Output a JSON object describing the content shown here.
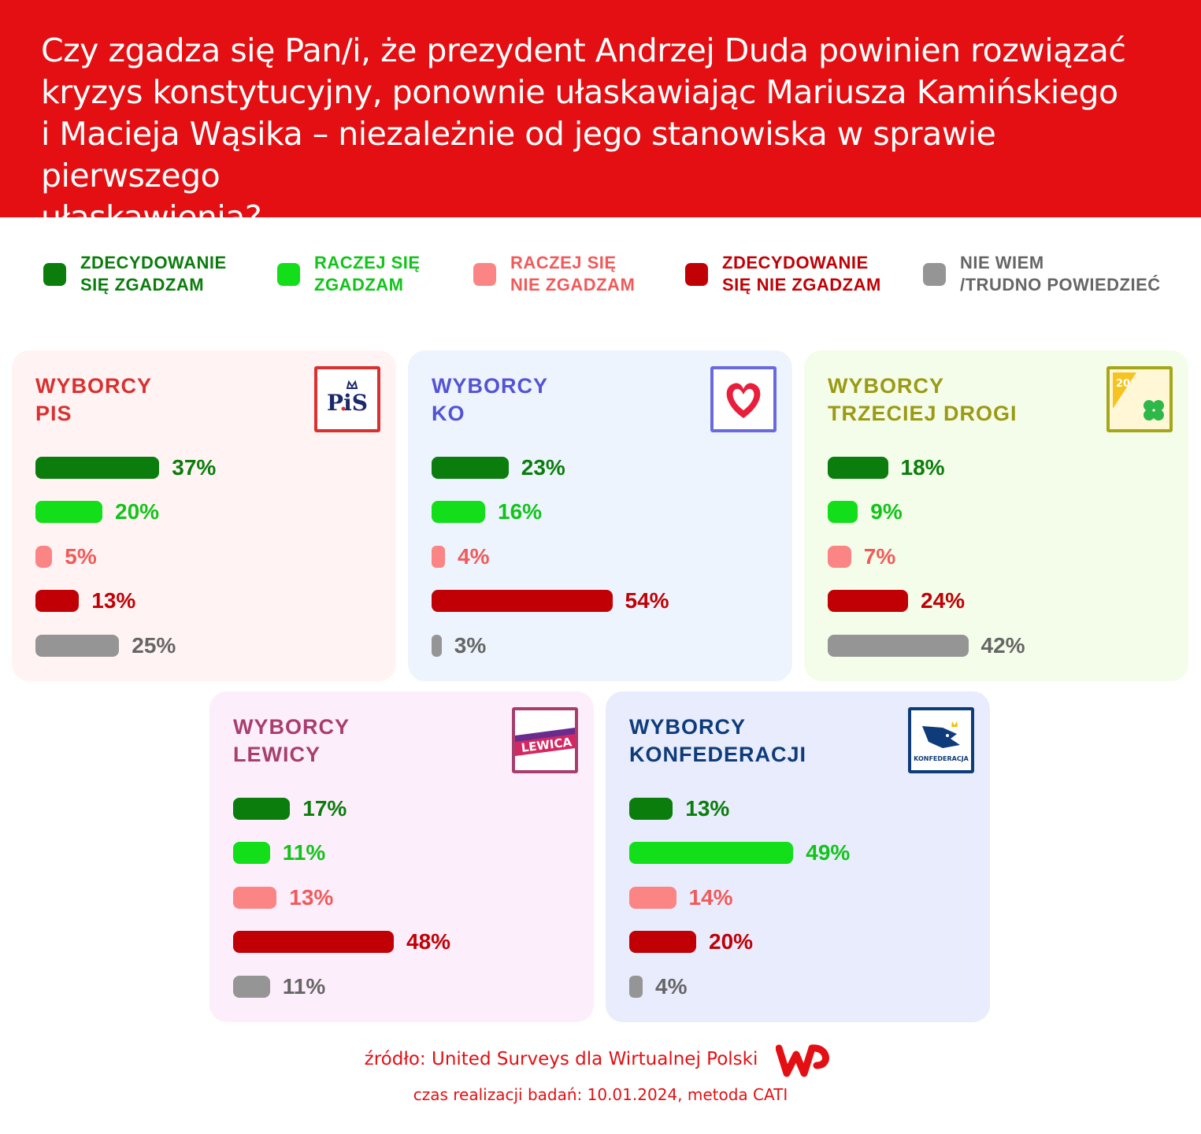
{
  "title": "Czy zgadza się Pan/i, że prezydent Andrzej Duda powinien rozwiązać kryzys konstytucyjny, ponownie ułaskawiając Mariusza Kamińskiego i Macieja Wąsika – niezależnie od jego stanowiska w sprawie pierwszego ułaskawienia?",
  "title_lines": [
    "Czy zgadza się Pan/i, że prezydent Andrzej Duda powinien rozwiązać",
    "kryzys konstytucyjny, ponownie ułaskawiając Mariusza Kamińskiego",
    "i Macieja Wąsika – niezależnie od jego stanowiska w sprawie pierwszego",
    "ułaskawienia?"
  ],
  "colors": {
    "header_bg": "#e40f12",
    "strong_agree": "#0a7d0c",
    "agree": "#12de1a",
    "disagree": "#fb8585",
    "strong_disagree": "#c10005",
    "dont_know": "#959595",
    "strong_agree_text": "#0a7d0c",
    "agree_text": "#12c41a",
    "disagree_text": "#f25a5a",
    "strong_disagree_text": "#c10005",
    "dont_know_text": "#666666"
  },
  "legend": [
    {
      "key": "strong_agree",
      "line1": "ZDECYDOWANIE",
      "line2": "SIĘ ZGADZAM"
    },
    {
      "key": "agree",
      "line1": "RACZEJ SIĘ",
      "line2": "ZGADZAM"
    },
    {
      "key": "disagree",
      "line1": "RACZEJ SIĘ",
      "line2": "NIE ZGADZAM"
    },
    {
      "key": "strong_disagree",
      "line1": "ZDECYDOWANIE",
      "line2": "SIĘ NIE ZGADZAM"
    },
    {
      "key": "dont_know",
      "line1": "NIE WIEM",
      "line2": "/TRUDNO POWIEDZIEĆ"
    }
  ],
  "chart_data": [
    {
      "type": "bar",
      "title": "WYBORCY PIS",
      "title_line1": "WYBORCY",
      "title_line2": "PIS",
      "title_color": "#d8312f",
      "bg": "#fff4f3",
      "logo_color": "#d8312f",
      "logo_name": "pis-logo-icon",
      "logo_text": "PiS",
      "categories": [
        "ZDECYDOWANIE SIĘ ZGADZAM",
        "RACZEJ SIĘ ZGADZAM",
        "RACZEJ SIĘ NIE ZGADZAM",
        "ZDECYDOWANIE SIĘ NIE ZGADZAM",
        "NIE WIEM /TRUDNO POWIEDZIEĆ"
      ],
      "values": [
        37,
        20,
        5,
        13,
        25
      ],
      "labels": [
        "37%",
        "20%",
        "5%",
        "13%",
        "25%"
      ],
      "ylim": [
        0,
        100
      ]
    },
    {
      "type": "bar",
      "title": "WYBORCY KO",
      "title_line1": "WYBORCY",
      "title_line2": "KO",
      "title_color": "#5353d6",
      "bg": "#edf4fd",
      "logo_color": "#6a6ae0",
      "logo_name": "ko-heart-logo-icon",
      "logo_text": "",
      "categories": [
        "ZDECYDOWANIE SIĘ ZGADZAM",
        "RACZEJ SIĘ ZGADZAM",
        "RACZEJ SIĘ NIE ZGADZAM",
        "ZDECYDOWANIE SIĘ NIE ZGADZAM",
        "NIE WIEM /TRUDNO POWIEDZIEĆ"
      ],
      "values": [
        23,
        16,
        4,
        54,
        3
      ],
      "labels": [
        "23%",
        "16%",
        "4%",
        "54%",
        "3%"
      ],
      "ylim": [
        0,
        100
      ]
    },
    {
      "type": "bar",
      "title": "WYBORCY TRZECIEJ DROGI",
      "title_line1": "WYBORCY",
      "title_line2": "TRZECIEJ DROGI",
      "title_color": "#9a9a14",
      "bg": "#f4fde9",
      "logo_color": "#a6a619",
      "logo_name": "trzecia-droga-logo-icon",
      "logo_text": "",
      "categories": [
        "ZDECYDOWANIE SIĘ ZGADZAM",
        "RACZEJ SIĘ ZGADZAM",
        "RACZEJ SIĘ NIE ZGADZAM",
        "ZDECYDOWANIE SIĘ NIE ZGADZAM",
        "NIE WIEM /TRUDNO POWIEDZIEĆ"
      ],
      "values": [
        18,
        9,
        7,
        24,
        42
      ],
      "labels": [
        "18%",
        "9%",
        "7%",
        "24%",
        "42%"
      ],
      "ylim": [
        0,
        100
      ]
    },
    {
      "type": "bar",
      "title": "WYBORCY LEWICY",
      "title_line1": "WYBORCY",
      "title_line2": "LEWICY",
      "title_color": "#a83e6e",
      "bg": "#fdeefb",
      "logo_color": "#a83e6e",
      "logo_name": "lewica-logo-icon",
      "logo_text": "LEWICA",
      "categories": [
        "ZDECYDOWANIE SIĘ ZGADZAM",
        "RACZEJ SIĘ ZGADZAM",
        "RACZEJ SIĘ NIE ZGADZAM",
        "ZDECYDOWANIE SIĘ NIE ZGADZAM",
        "NIE WIEM /TRUDNO POWIEDZIEĆ"
      ],
      "values": [
        17,
        11,
        13,
        48,
        11
      ],
      "labels": [
        "17%",
        "11%",
        "13%",
        "48%",
        "11%"
      ],
      "ylim": [
        0,
        100
      ]
    },
    {
      "type": "bar",
      "title": "WYBORCY KONFEDERACJI",
      "title_line1": "WYBORCY",
      "title_line2": "KONFEDERACJI",
      "title_color": "#0e3b7a",
      "bg": "#e8ecfc",
      "logo_color": "#0e3b7a",
      "logo_name": "konfederacja-logo-icon",
      "logo_text": "KONFEDERACJA",
      "categories": [
        "ZDECYDOWANIE SIĘ ZGADZAM",
        "RACZEJ SIĘ ZGADZAM",
        "RACZEJ SIĘ NIE ZGADZAM",
        "ZDECYDOWANIE SIĘ NIE ZGADZAM",
        "NIE WIEM /TRUDNO POWIEDZIEĆ"
      ],
      "values": [
        13,
        49,
        14,
        20,
        4
      ],
      "labels": [
        "13%",
        "49%",
        "14%",
        "20%",
        "4%"
      ],
      "ylim": [
        0,
        100
      ]
    }
  ],
  "footer": {
    "source": "źródło: United Surveys dla Wirtualnej Polski",
    "method": "czas realizacji badań: 10.01.2024, metoda CATI"
  }
}
